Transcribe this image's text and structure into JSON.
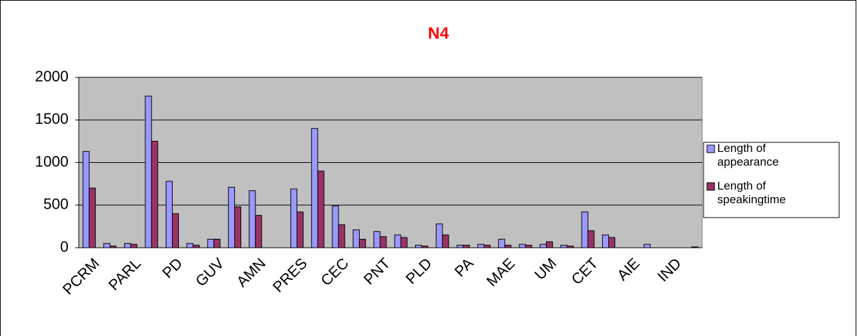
{
  "chart_data": {
    "type": "bar",
    "title": "N4",
    "categories": [
      "PCRM",
      null,
      "PARL",
      null,
      "PD",
      null,
      "GUV",
      null,
      "AMN",
      null,
      "PRES",
      null,
      "CEC",
      null,
      "PNT",
      null,
      "PLD",
      null,
      "PA",
      null,
      "MAE",
      null,
      "UM",
      null,
      "CET",
      null,
      "AIE",
      null,
      "IND",
      null
    ],
    "series": [
      {
        "name": "Length of appearance",
        "color": "#9999ff",
        "values": [
          1130,
          50,
          50,
          1780,
          780,
          50,
          100,
          710,
          670,
          0,
          690,
          1400,
          490,
          210,
          190,
          150,
          30,
          280,
          30,
          40,
          100,
          40,
          40,
          30,
          420,
          150,
          0,
          40,
          0,
          0
        ]
      },
      {
        "name": "Length of speakingtime",
        "color": "#993366",
        "values": [
          700,
          20,
          40,
          1250,
          400,
          30,
          100,
          480,
          380,
          0,
          420,
          900,
          270,
          100,
          130,
          120,
          20,
          150,
          30,
          30,
          30,
          30,
          70,
          20,
          200,
          120,
          0,
          0,
          0,
          10
        ]
      }
    ],
    "ylim": [
      0,
      2000
    ],
    "yticks": [
      0,
      500,
      1000,
      1500,
      2000
    ],
    "grid": true,
    "legend": "right"
  }
}
